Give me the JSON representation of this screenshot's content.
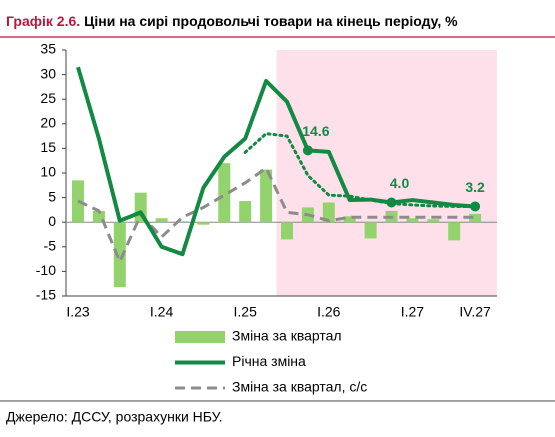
{
  "chart_data": {
    "type": "bar",
    "title_label": "Графік 2.6.",
    "title": "Ціни на сирі продовольчі товари на кінець періоду, %",
    "source": "Джерело: ДССУ, розрахунки НБУ.",
    "categories": [
      "I.23",
      null,
      null,
      null,
      "I.24",
      null,
      null,
      null,
      "I.25",
      null,
      null,
      null,
      "I.26",
      null,
      null,
      null,
      "I.27",
      null,
      null,
      "IV.27"
    ],
    "ylim": [
      -15,
      35
    ],
    "yticks": [
      -15,
      -10,
      -5,
      0,
      5,
      10,
      15,
      20,
      25,
      30,
      35
    ],
    "shade_from_index": 10,
    "shade_color": "#fde0ea",
    "series": [
      {
        "name": "Зміна за квартал",
        "type": "bar",
        "color": "#92d36e",
        "values": [
          8.5,
          2.3,
          -13.2,
          6,
          0.8,
          0.2,
          -0.5,
          12,
          4.3,
          10.7,
          -3.5,
          3,
          4,
          1.2,
          -3.3,
          2.3,
          0.8,
          0.6,
          -3.7,
          1.7
        ]
      },
      {
        "name": "Річна зміна",
        "type": "line",
        "color": "#138a43",
        "values": [
          31.5,
          17,
          0.3,
          2,
          -5,
          -6.5,
          7,
          13.3,
          17,
          28.7,
          24.5,
          14.6,
          14.3,
          4.5,
          4.6,
          4.0,
          4.5,
          4.0,
          3.5,
          3.2
        ],
        "value_labels": [
          null,
          null,
          null,
          null,
          null,
          null,
          null,
          null,
          null,
          null,
          null,
          "14.6",
          null,
          null,
          null,
          "4.0",
          null,
          null,
          null,
          "3.2"
        ]
      },
      {
        "name": "Зміна за квартал, с/с",
        "type": "dashed",
        "color": "#8c8c8c",
        "values": [
          4.3,
          2.3,
          -8,
          1.5,
          -3,
          1,
          3,
          5.5,
          8,
          11,
          2,
          1.5,
          0.3,
          1,
          1,
          1,
          1,
          1,
          1,
          1
        ]
      },
      {
        "type": "dotted",
        "color": "#138a43",
        "values": [
          null,
          null,
          null,
          null,
          null,
          null,
          null,
          null,
          14.2,
          18,
          17.5,
          9.5,
          5.5,
          5.3,
          4.5,
          3.8,
          3.5,
          3.3,
          3.2,
          3.2
        ]
      }
    ]
  }
}
